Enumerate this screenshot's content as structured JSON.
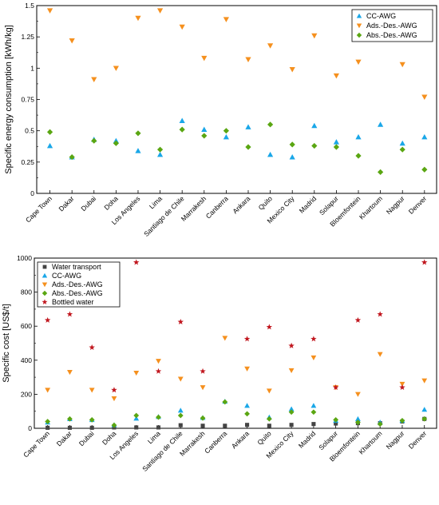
{
  "colors": {
    "cc_awg": "#1aa7e8",
    "ads_des_awg": "#f5901e",
    "abs_des_awg": "#5aa612",
    "water_transport": "#444444",
    "bottled_water": "#c1171f"
  },
  "chart_data": [
    {
      "type": "scatter",
      "title": "",
      "xlabel": "",
      "ylabel": "Specific energy consumption [kWh/kg]",
      "ylim": [
        0,
        1.5
      ],
      "yticks": [
        0,
        0.25,
        0.5,
        0.75,
        1,
        1.25,
        1.5
      ],
      "ytick_labels": [
        "0",
        "0.25",
        "0.5",
        "0.75",
        "1",
        "1.25",
        "1.5"
      ],
      "grid": false,
      "legend_position": "top-right",
      "categories": [
        "Cape Town",
        "Dakar",
        "Dubai",
        "Doha",
        "Los Angeles",
        "Lima",
        "Santiago de Chile",
        "Marrakesh",
        "Canberra",
        "Ankara",
        "Quito",
        "Mexico City",
        "Madrid",
        "Solapur",
        "Bloemfontein",
        "Khartoum",
        "Nagpur",
        "Denver"
      ],
      "series": [
        {
          "name": "CC-AWG",
          "marker": "triangle-up",
          "color_key": "cc_awg",
          "values": [
            0.38,
            0.29,
            0.43,
            0.42,
            0.34,
            0.31,
            0.58,
            0.51,
            0.45,
            0.53,
            0.31,
            0.29,
            0.54,
            0.41,
            0.45,
            0.55,
            0.4,
            0.45
          ]
        },
        {
          "name": "Ads.-Des.-AWG",
          "marker": "triangle-down",
          "color_key": "ads_des_awg",
          "values": [
            1.46,
            1.22,
            0.91,
            1.0,
            1.4,
            1.46,
            1.33,
            1.08,
            1.39,
            1.07,
            1.18,
            0.99,
            1.26,
            0.94,
            1.05,
            null,
            1.03,
            0.77
          ]
        },
        {
          "name": "Abs.-Des.-AWG",
          "marker": "diamond",
          "color_key": "abs_des_awg",
          "values": [
            0.49,
            0.29,
            0.42,
            0.4,
            0.48,
            0.35,
            0.51,
            0.46,
            0.5,
            0.37,
            0.55,
            0.39,
            0.38,
            0.37,
            0.3,
            0.17,
            0.35,
            0.19
          ]
        }
      ]
    },
    {
      "type": "scatter",
      "title": "",
      "xlabel": "",
      "ylabel": "Specific cost [US$/t]",
      "ylim": [
        0,
        1000
      ],
      "yticks": [
        0,
        200,
        400,
        600,
        800,
        1000
      ],
      "ytick_labels": [
        "0",
        "200",
        "400",
        "600",
        "800",
        "1000"
      ],
      "grid": false,
      "legend_position": "top-left",
      "categories": [
        "Cape Town",
        "Dakar",
        "Dubai",
        "Doha",
        "Los Angeles",
        "Lima",
        "Santiago de Chile",
        "Marrakesh",
        "Canberra",
        "Ankara",
        "Quito",
        "Mexico City",
        "Madrid",
        "Solapur",
        "Bloemfontein",
        "Khartoum",
        "Nagpur",
        "Denver"
      ],
      "series": [
        {
          "name": "Water transport",
          "marker": "square",
          "color_key": "water_transport",
          "values": [
            3,
            3,
            3,
            5,
            5,
            5,
            18,
            15,
            15,
            20,
            15,
            20,
            25,
            28,
            30,
            30,
            40,
            55
          ]
        },
        {
          "name": "CC-AWG",
          "marker": "triangle-up",
          "color_key": "cc_awg",
          "values": [
            35,
            55,
            50,
            20,
            58,
            68,
            105,
            62,
            158,
            133,
            65,
            113,
            133,
            45,
            55,
            35,
            45,
            110
          ]
        },
        {
          "name": "Ads.-Des.-AWG",
          "marker": "triangle-down",
          "color_key": "ads_des_awg",
          "values": [
            225,
            330,
            225,
            175,
            325,
            395,
            290,
            240,
            530,
            350,
            220,
            340,
            415,
            240,
            200,
            435,
            260,
            280
          ]
        },
        {
          "name": "Abs.-Des.-AWG",
          "marker": "diamond",
          "color_key": "abs_des_awg",
          "values": [
            40,
            55,
            50,
            18,
            75,
            65,
            75,
            60,
            155,
            85,
            55,
            95,
            95,
            50,
            35,
            25,
            45,
            55
          ]
        },
        {
          "name": "Bottled water",
          "marker": "star",
          "color_key": "bottled_water",
          "values": [
            635,
            670,
            475,
            225,
            975,
            335,
            625,
            335,
            null,
            525,
            595,
            485,
            525,
            240,
            635,
            670,
            240,
            975
          ]
        }
      ]
    }
  ]
}
